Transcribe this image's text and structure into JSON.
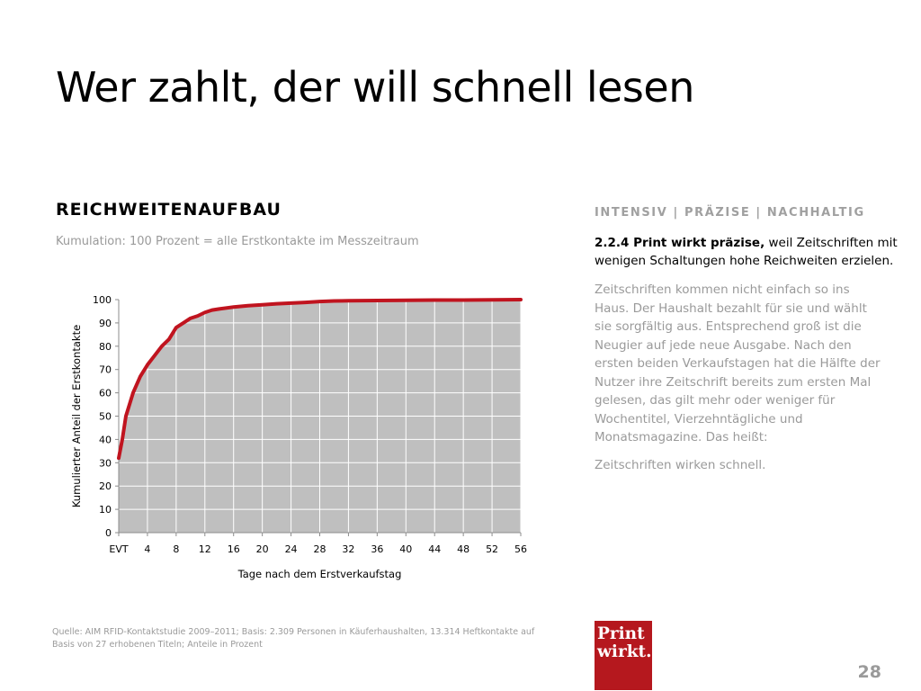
{
  "slide": {
    "title": "Wer zahlt, der will schnell lesen",
    "chart_heading": "REICHWEITENAUFBAU",
    "chart_subtitle": "Kumulation: 100 Prozent = alle Erstkontakte im Messzeitraum",
    "source": "Quelle: AIM RFID-Kontaktstudie 2009–2011; Basis: 2.309 Personen in Käuferhaushalten, 13.314 Heftkontakte auf Basis von 27 erhobenen Titeln; Anteile in Prozent",
    "right_heading": "INTENSIV | PRÄZISE | NACHHALTIG",
    "lead_bold": "2.2.4 Print wirkt präzise,",
    "lead_rest": " weil Zeitschriften mit wenigen Schaltungen hohe Reichweiten erzielen.",
    "body": "Zeitschriften kommen nicht einfach so ins Haus. Der Haushalt bezahlt für sie und wählt sie sorgfältig aus. Entsprechend groß ist die Neugier auf jede neue Ausgabe. Nach den ersten beiden Verkaufstagen hat die Hälfte der Nutzer ihre Zeitschrift bereits zum ersten Mal gelesen, das gilt mehr oder weniger für Wochentitel, Vierzehntägliche und Monatsmagazine. Das heißt:",
    "conclusion": "Zeitschriften wirken schnell.",
    "logo_line1": "Print",
    "logo_line2": "wirkt.",
    "page_number": "28"
  },
  "colors": {
    "line": "#c0141f",
    "area": "#bfbfbf",
    "grid": "#ffffff",
    "logo_bg": "#b5181e"
  },
  "chart_data": {
    "type": "area",
    "title": "",
    "xlabel": "Tage nach dem Erstverkaufstag",
    "ylabel": "Kumulierter Anteil der Erstkontakte",
    "x_tick_labels": [
      "EVT",
      "4",
      "8",
      "12",
      "16",
      "20",
      "24",
      "28",
      "32",
      "36",
      "40",
      "44",
      "48",
      "52",
      "56"
    ],
    "x_tick_values": [
      0,
      4,
      8,
      12,
      16,
      20,
      24,
      28,
      32,
      36,
      40,
      44,
      48,
      52,
      56
    ],
    "y_ticks": [
      0,
      10,
      20,
      30,
      40,
      50,
      60,
      70,
      80,
      90,
      100
    ],
    "xlim": [
      0,
      56
    ],
    "ylim": [
      0,
      100
    ],
    "grid": true,
    "legend": "none",
    "series": [
      {
        "name": "",
        "x": [
          0,
          0.5,
          1,
          2,
          3,
          4,
          5,
          6,
          7,
          8,
          9,
          10,
          11,
          12,
          13,
          14,
          16,
          18,
          20,
          22,
          24,
          26,
          28,
          30,
          32,
          36,
          40,
          44,
          48,
          52,
          56
        ],
        "y": [
          32,
          40,
          50,
          60,
          67,
          72,
          76,
          80,
          83,
          88,
          90,
          92,
          93,
          94.5,
          95.5,
          96,
          96.8,
          97.4,
          97.8,
          98.2,
          98.5,
          98.8,
          99.2,
          99.4,
          99.5,
          99.6,
          99.7,
          99.8,
          99.8,
          99.9,
          100
        ]
      }
    ]
  }
}
